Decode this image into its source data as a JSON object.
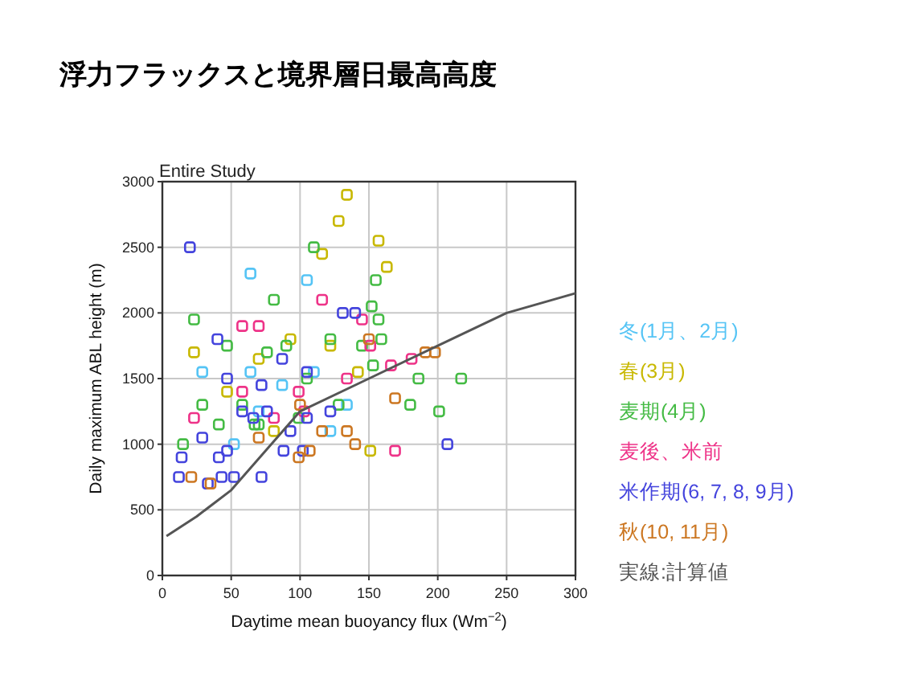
{
  "chart_data": {
    "type": "scatter",
    "title": "浮力フラックスと境界層日最高高度",
    "subtitle": "Entire Study",
    "xlabel": "Daytime mean buoyancy flux (Wm$^{−2}$)",
    "ylabel": "Daily maximum ABL height (m)",
    "xlim": [
      0,
      300
    ],
    "xticks": [
      0,
      50,
      100,
      150,
      200,
      250,
      300
    ],
    "ylim": [
      0,
      3000
    ],
    "yticks": [
      0,
      500,
      1000,
      1500,
      2000,
      2500,
      3000
    ],
    "grid": true,
    "legend": "right",
    "series": [
      {
        "name": "冬(1月、2月)",
        "marker": "square",
        "color": "#55c4f5",
        "x": [
          64,
          105,
          29,
          64,
          110,
          70,
          122,
          52,
          87,
          134
        ],
        "values": [
          2300,
          2250,
          1550,
          1550,
          1550,
          1250,
          1100,
          1000,
          1450,
          1300
        ]
      },
      {
        "name": "春(3月)",
        "marker": "square",
        "color": "#c8b800",
        "x": [
          134,
          128,
          116,
          157,
          93,
          122,
          70,
          47,
          151,
          163,
          81,
          23,
          142
        ],
        "values": [
          2900,
          2700,
          2450,
          2550,
          1800,
          1750,
          1650,
          1400,
          950,
          2350,
          1100,
          1700,
          1550
        ]
      },
      {
        "name": "麦期(4月)",
        "marker": "square",
        "color": "#44bb44",
        "x": [
          110,
          155,
          152,
          157,
          159,
          122,
          145,
          90,
          29,
          41,
          70,
          15,
          58,
          99,
          128,
          153,
          186,
          180,
          201,
          217,
          76,
          47,
          67,
          105,
          81,
          23
        ],
        "values": [
          2500,
          2250,
          2050,
          1950,
          1800,
          1800,
          1750,
          1750,
          1300,
          1150,
          1150,
          1000,
          1300,
          1200,
          1300,
          1600,
          1500,
          1300,
          1250,
          1500,
          1700,
          1750,
          1150,
          1500,
          2100,
          1950
        ]
      },
      {
        "name": "麦後、米前",
        "marker": "square",
        "color": "#ee3388",
        "x": [
          58,
          70,
          116,
          145,
          181,
          151,
          58,
          23,
          81,
          103,
          134,
          166,
          99,
          169
        ],
        "values": [
          1900,
          1900,
          2100,
          1950,
          1650,
          1750,
          1400,
          1200,
          1200,
          1250,
          1500,
          1600,
          1400,
          950
        ]
      },
      {
        "name": "米作期(6, 7, 8, 9月)",
        "marker": "square",
        "color": "#4444dd",
        "x": [
          20,
          140,
          131,
          40,
          47,
          72,
          58,
          76,
          105,
          47,
          52,
          72,
          43,
          29,
          14,
          66,
          93,
          88,
          102,
          122,
          87,
          105,
          207,
          33,
          12,
          41
        ],
        "values": [
          2500,
          2000,
          2000,
          1800,
          1500,
          1450,
          1250,
          1250,
          1200,
          950,
          750,
          750,
          750,
          1050,
          900,
          1200,
          1100,
          950,
          950,
          1250,
          1650,
          1550,
          1000,
          700,
          750,
          900
        ]
      },
      {
        "name": "秋(10, 11月)",
        "marker": "square",
        "color": "#cc7722",
        "x": [
          100,
          70,
          150,
          191,
          198,
          140,
          99,
          107,
          35,
          169,
          134,
          116,
          21
        ],
        "values": [
          1300,
          1050,
          1800,
          1700,
          1700,
          1000,
          900,
          950,
          700,
          1350,
          1100,
          1100,
          750
        ]
      },
      {
        "name": "実線:計算値",
        "type": "line",
        "color": "#555555",
        "x": [
          3,
          25,
          50,
          75,
          100,
          150,
          200,
          250,
          300
        ],
        "values": [
          300,
          450,
          650,
          950,
          1250,
          1500,
          1750,
          2000,
          2150
        ]
      }
    ]
  }
}
